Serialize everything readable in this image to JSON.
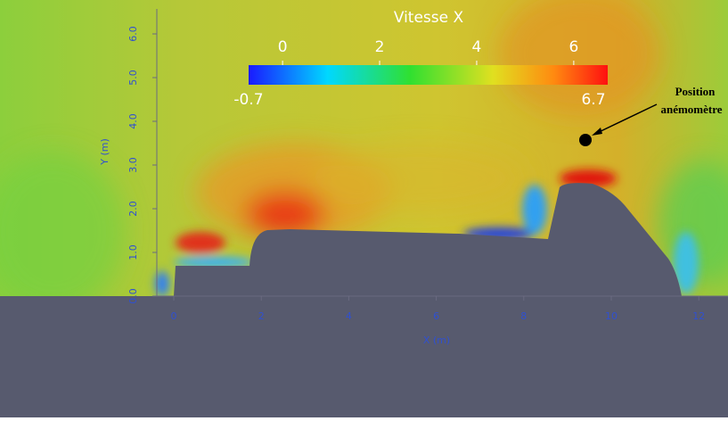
{
  "colorbar": {
    "title": "Vitesse X",
    "min": -0.7,
    "max": 6.7,
    "ticks": [
      0,
      2,
      4,
      6
    ]
  },
  "axes": {
    "xlabel": "X (m)",
    "ylabel": "Y (m)",
    "xlim": [
      -0.39,
      12.8
    ],
    "ylim": [
      0,
      6.6
    ],
    "xticks": [
      0,
      2,
      4,
      6,
      8,
      10,
      12
    ],
    "yticks": [
      {
        "value": 0,
        "label": "0.0"
      },
      {
        "value": 1,
        "label": "1.0"
      },
      {
        "value": 2,
        "label": "2.0"
      },
      {
        "value": 3,
        "label": "3.0"
      },
      {
        "value": 4,
        "label": "4.0"
      },
      {
        "value": 5,
        "label": "5.0"
      },
      {
        "value": 6,
        "label": "6.0"
      }
    ]
  },
  "annotation": {
    "line1": "Position",
    "line2": "anémomètre"
  }
}
